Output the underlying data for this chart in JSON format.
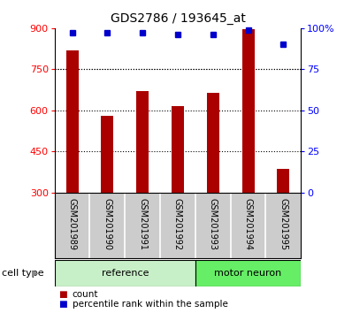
{
  "title": "GDS2786 / 193645_at",
  "samples": [
    "GSM201989",
    "GSM201990",
    "GSM201991",
    "GSM201992",
    "GSM201993",
    "GSM201994",
    "GSM201995"
  ],
  "counts": [
    820,
    580,
    670,
    615,
    665,
    895,
    385
  ],
  "percentile_ranks": [
    97,
    97,
    97,
    96,
    96,
    99,
    90
  ],
  "bar_color": "#AA0000",
  "dot_color": "#0000CC",
  "ylim_left": [
    300,
    900
  ],
  "ylim_right": [
    0,
    100
  ],
  "yticks_left": [
    300,
    450,
    600,
    750,
    900
  ],
  "ytick_right_vals": [
    0,
    25,
    50,
    75,
    100
  ],
  "ytick_right_labels": [
    "0",
    "25",
    "50",
    "75",
    "100%"
  ],
  "bg_color": "#ffffff",
  "tick_area_color": "#cccccc",
  "legend_count_label": "count",
  "legend_pct_label": "percentile rank within the sample",
  "cell_type_label": "cell type",
  "reference_label": "reference",
  "motor_neuron_label": "motor neuron",
  "reference_color": "#c8f0c8",
  "motor_neuron_color": "#66ee66",
  "ref_n": 4,
  "mn_n": 3,
  "bar_width": 0.35
}
